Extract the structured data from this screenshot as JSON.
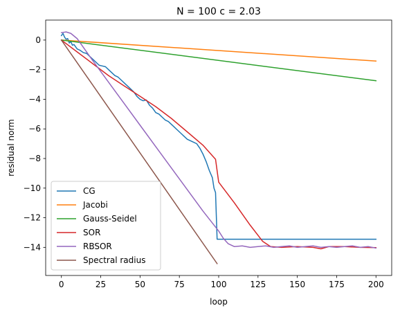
{
  "chart_data": {
    "type": "line",
    "title": "N = 100 c = 2.03",
    "xlabel": "loop",
    "ylabel": "residual norm",
    "xlim": [
      -10,
      210
    ],
    "ylim": [
      -15.9,
      1.35
    ],
    "xticks": [
      0,
      25,
      50,
      75,
      100,
      125,
      150,
      175,
      200
    ],
    "yticks": [
      0,
      -2,
      -4,
      -6,
      -8,
      -10,
      -12,
      -14
    ],
    "grid": false,
    "legend_position": "lower-left",
    "series": [
      {
        "name": "CG",
        "color": "#1f77b4",
        "points": [
          [
            0,
            0.3
          ],
          [
            1,
            0.45
          ],
          [
            2,
            0.2
          ],
          [
            3,
            0.05
          ],
          [
            4,
            0.1
          ],
          [
            5,
            -0.2
          ],
          [
            6,
            -0.1
          ],
          [
            7,
            -0.35
          ],
          [
            8,
            -0.3
          ],
          [
            10,
            -0.6
          ],
          [
            12,
            -0.7
          ],
          [
            14,
            -0.85
          ],
          [
            16,
            -0.9
          ],
          [
            18,
            -1.1
          ],
          [
            20,
            -1.3
          ],
          [
            22,
            -1.5
          ],
          [
            24,
            -1.7
          ],
          [
            26,
            -1.75
          ],
          [
            28,
            -1.8
          ],
          [
            30,
            -2.0
          ],
          [
            32,
            -2.2
          ],
          [
            34,
            -2.4
          ],
          [
            36,
            -2.5
          ],
          [
            38,
            -2.7
          ],
          [
            40,
            -2.9
          ],
          [
            42,
            -3.1
          ],
          [
            44,
            -3.3
          ],
          [
            46,
            -3.5
          ],
          [
            48,
            -3.8
          ],
          [
            50,
            -4.0
          ],
          [
            52,
            -4.1
          ],
          [
            54,
            -4.05
          ],
          [
            56,
            -4.4
          ],
          [
            58,
            -4.6
          ],
          [
            60,
            -4.9
          ],
          [
            62,
            -5.0
          ],
          [
            64,
            -5.2
          ],
          [
            66,
            -5.4
          ],
          [
            68,
            -5.5
          ],
          [
            70,
            -5.7
          ],
          [
            72,
            -5.9
          ],
          [
            74,
            -6.1
          ],
          [
            76,
            -6.3
          ],
          [
            78,
            -6.5
          ],
          [
            80,
            -6.7
          ],
          [
            82,
            -6.8
          ],
          [
            84,
            -6.9
          ],
          [
            86,
            -7.0
          ],
          [
            88,
            -7.3
          ],
          [
            90,
            -7.7
          ],
          [
            92,
            -8.2
          ],
          [
            94,
            -8.8
          ],
          [
            96,
            -9.3
          ],
          [
            97,
            -10.0
          ],
          [
            98,
            -10.3
          ],
          [
            99,
            -13.45
          ],
          [
            200,
            -13.45
          ]
        ]
      },
      {
        "name": "Jacobi",
        "color": "#ff7f0e",
        "points": [
          [
            0,
            0.0
          ],
          [
            200,
            -1.42
          ]
        ]
      },
      {
        "name": "Gauss-Seidel",
        "color": "#2ca02c",
        "points": [
          [
            0,
            0.0
          ],
          [
            200,
            -2.75
          ]
        ]
      },
      {
        "name": "SOR",
        "color": "#d62728",
        "points": [
          [
            0,
            0.0
          ],
          [
            10,
            -0.8
          ],
          [
            20,
            -1.6
          ],
          [
            30,
            -2.4
          ],
          [
            40,
            -3.1
          ],
          [
            50,
            -3.8
          ],
          [
            60,
            -4.5
          ],
          [
            70,
            -5.3
          ],
          [
            80,
            -6.2
          ],
          [
            90,
            -7.1
          ],
          [
            98,
            -8.05
          ],
          [
            100,
            -9.6
          ],
          [
            110,
            -11.0
          ],
          [
            120,
            -12.5
          ],
          [
            128,
            -13.6
          ],
          [
            133,
            -13.95
          ],
          [
            140,
            -14.0
          ],
          [
            150,
            -13.95
          ],
          [
            160,
            -14.0
          ],
          [
            165,
            -14.1
          ],
          [
            170,
            -13.95
          ],
          [
            180,
            -13.95
          ],
          [
            190,
            -14.0
          ],
          [
            200,
            -14.02
          ]
        ]
      },
      {
        "name": "RBSOR",
        "color": "#9467bd",
        "points": [
          [
            0,
            0.5
          ],
          [
            3,
            0.55
          ],
          [
            6,
            0.45
          ],
          [
            10,
            0.1
          ],
          [
            20,
            -1.4
          ],
          [
            30,
            -2.85
          ],
          [
            40,
            -4.3
          ],
          [
            50,
            -5.75
          ],
          [
            60,
            -7.2
          ],
          [
            70,
            -8.65
          ],
          [
            80,
            -10.1
          ],
          [
            90,
            -11.55
          ],
          [
            100,
            -12.9
          ],
          [
            103,
            -13.4
          ],
          [
            106,
            -13.75
          ],
          [
            110,
            -13.95
          ],
          [
            115,
            -13.9
          ],
          [
            120,
            -14.0
          ],
          [
            125,
            -13.95
          ],
          [
            130,
            -13.9
          ],
          [
            135,
            -14.0
          ],
          [
            140,
            -13.95
          ],
          [
            145,
            -13.9
          ],
          [
            150,
            -14.0
          ],
          [
            155,
            -13.95
          ],
          [
            160,
            -13.9
          ],
          [
            165,
            -14.0
          ],
          [
            170,
            -13.95
          ],
          [
            175,
            -14.0
          ],
          [
            180,
            -13.95
          ],
          [
            185,
            -13.9
          ],
          [
            190,
            -14.0
          ],
          [
            195,
            -13.95
          ],
          [
            200,
            -14.05
          ]
        ]
      },
      {
        "name": "Spectral radius",
        "color": "#8c564b",
        "points": [
          [
            0,
            0.0
          ],
          [
            99,
            -15.1
          ]
        ]
      }
    ]
  }
}
